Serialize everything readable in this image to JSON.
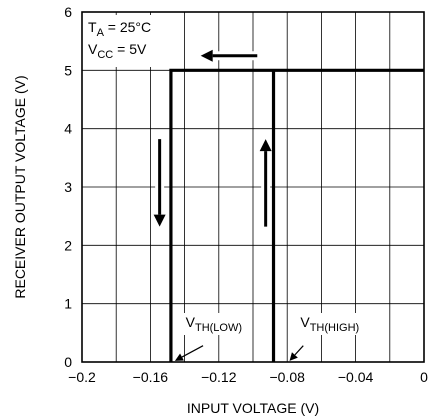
{
  "chart_data": {
    "type": "line",
    "xlabel": "INPUT VOLTAGE (V)",
    "ylabel": "RECEIVER OUTPUT VOLTAGE (V)",
    "xlim": [
      -0.2,
      0
    ],
    "ylim": [
      0,
      6
    ],
    "x_ticks": [
      -0.2,
      -0.16,
      -0.12,
      -0.08,
      -0.04,
      0
    ],
    "x_tick_labels": [
      "−0.2",
      "−0.16",
      "−0.12",
      "−0.08",
      "−0.04",
      "0"
    ],
    "y_ticks": [
      0,
      1,
      2,
      3,
      4,
      5,
      6
    ],
    "y_tick_labels": [
      "0",
      "1",
      "2",
      "3",
      "4",
      "5",
      "6"
    ],
    "grid": true,
    "series": [
      {
        "x": [
          -0.148,
          -0.148,
          0
        ],
        "y": [
          0,
          5,
          5
        ]
      },
      {
        "x": [
          -0.088,
          -0.088
        ],
        "y": [
          0,
          5
        ]
      }
    ],
    "conditions": {
      "ta": {
        "main": "T",
        "sub": "A",
        "rest": " = 25°C"
      },
      "vcc": {
        "main": "V",
        "sub": "CC",
        "rest": " = 5V"
      }
    },
    "annotations": [
      {
        "main": "V",
        "sub": "TH(LOW)"
      },
      {
        "main": "V",
        "sub": "TH(HIGH)"
      }
    ]
  }
}
